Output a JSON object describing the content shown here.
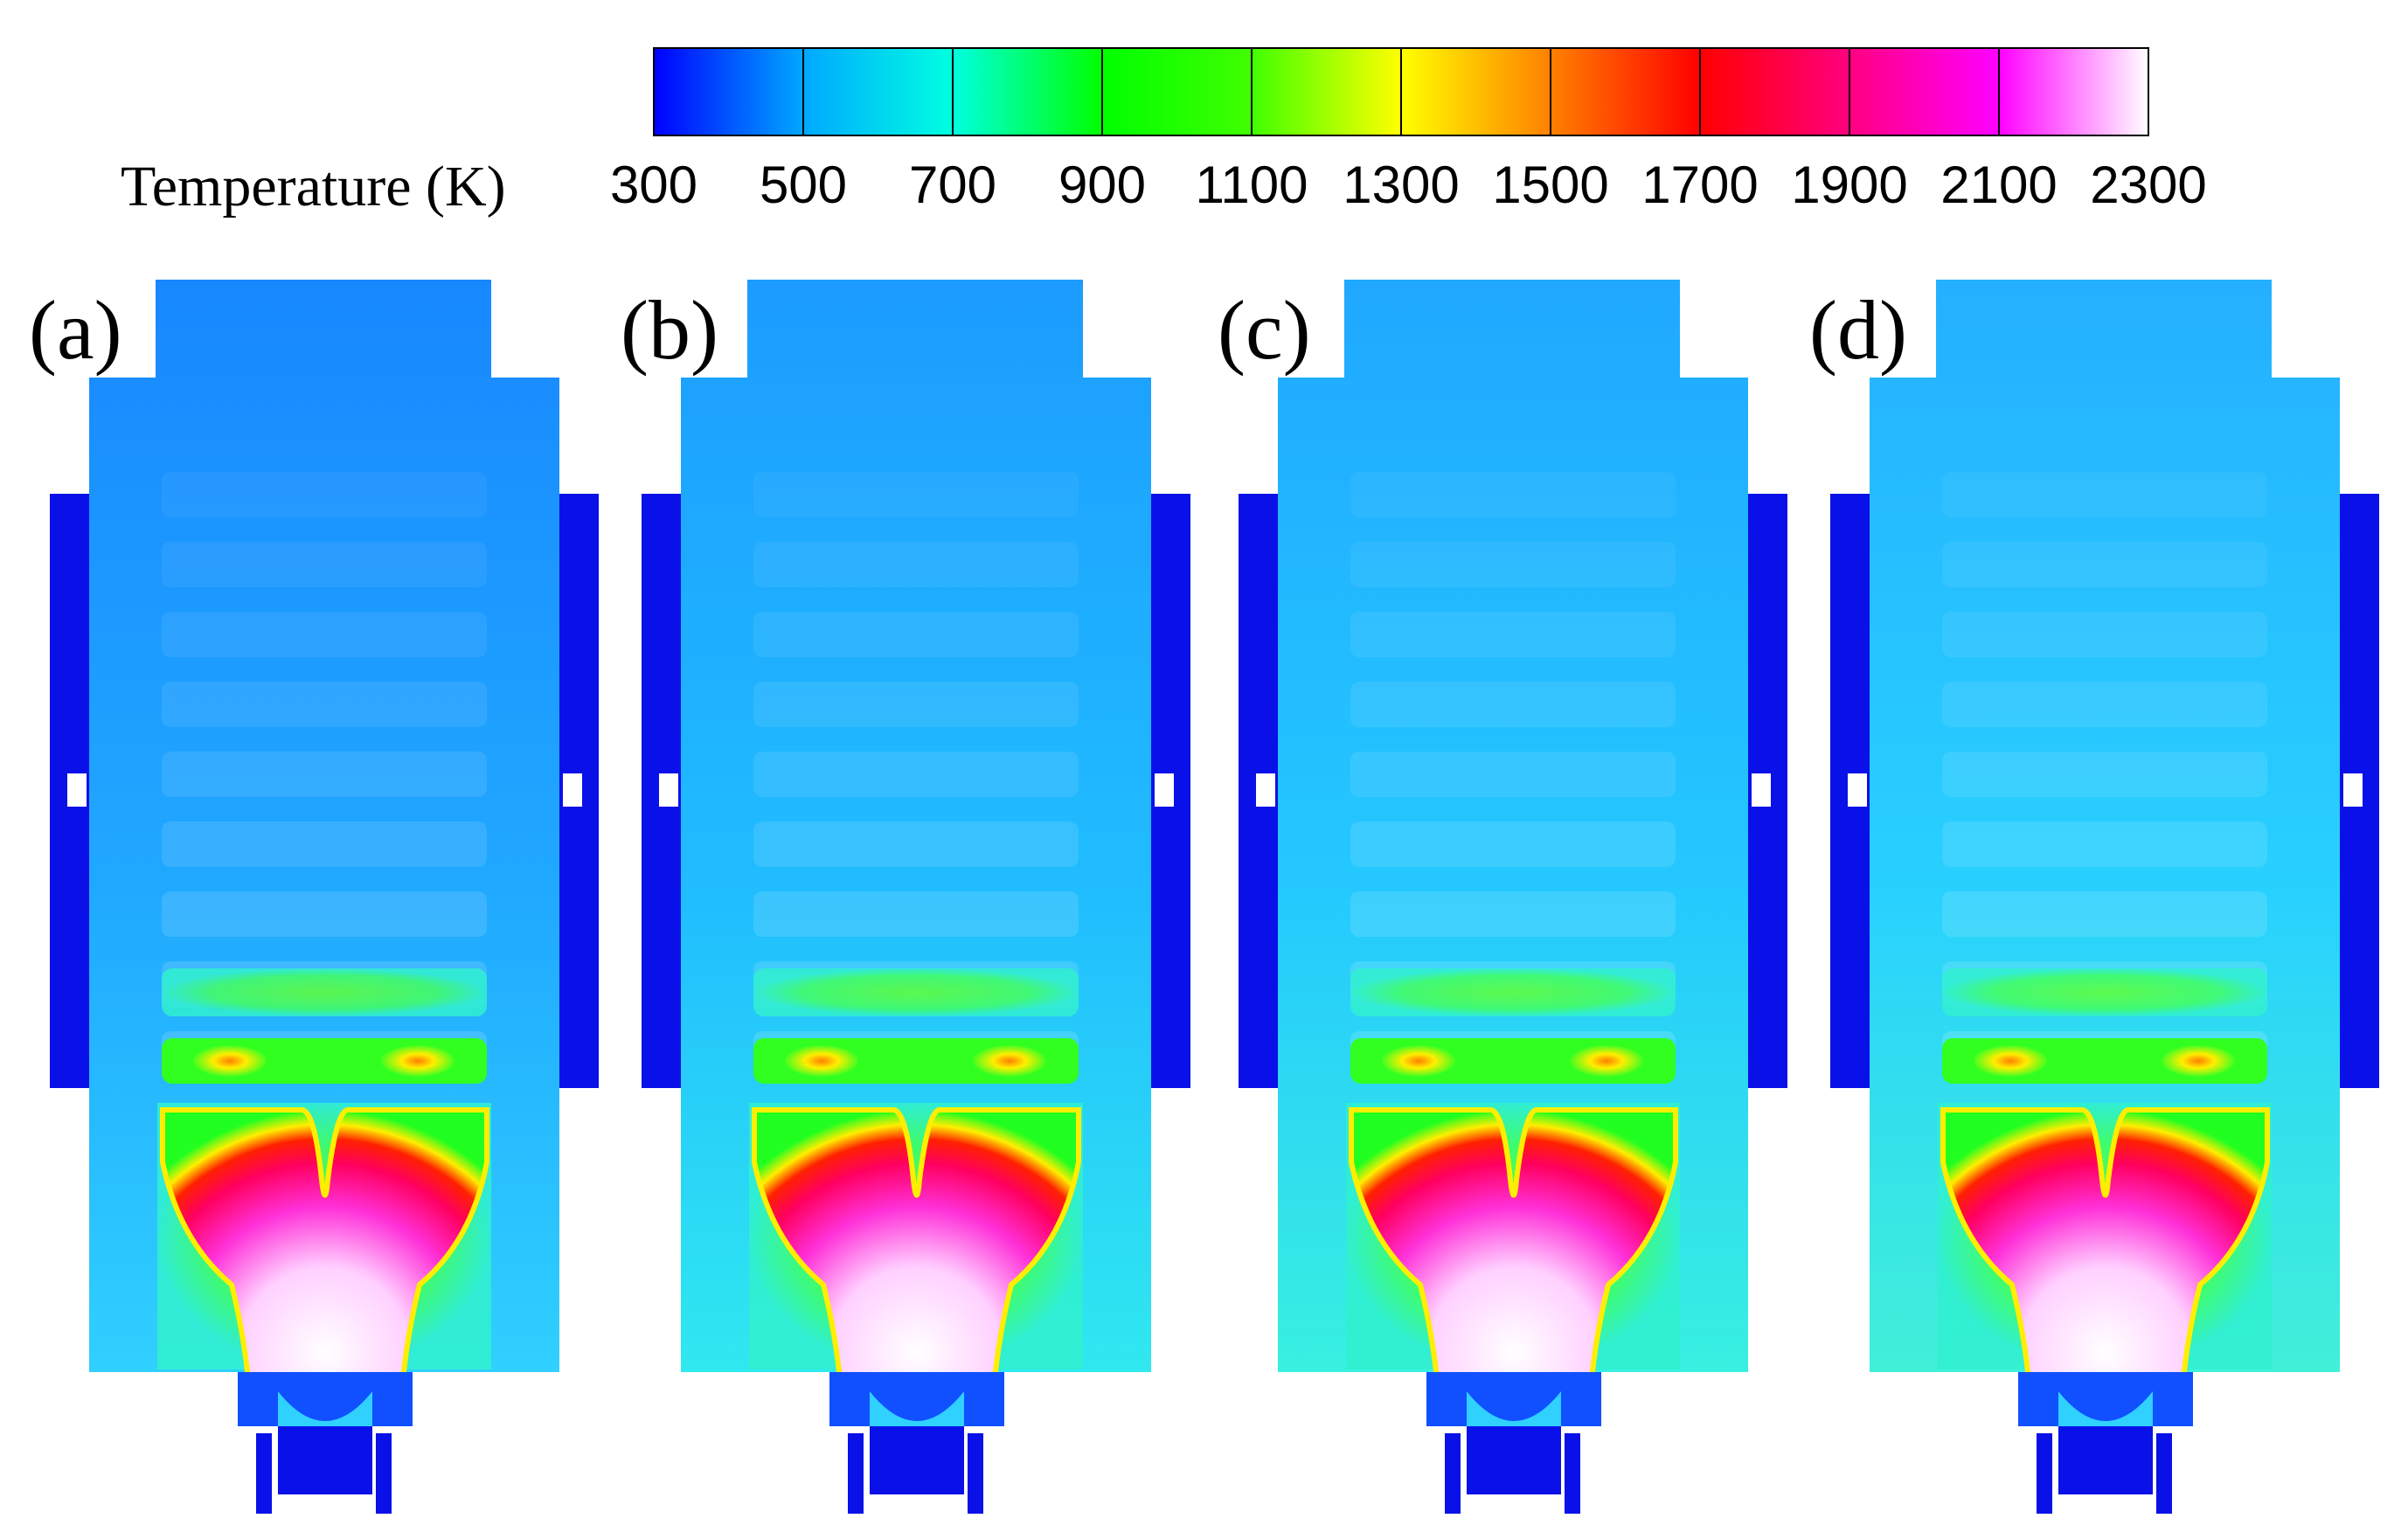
{
  "colorbar": {
    "title": "Temperature (K)",
    "ticks": [
      "300",
      "500",
      "700",
      "900",
      "1100",
      "1300",
      "1500",
      "1700",
      "1900",
      "2100",
      "2300"
    ],
    "stops": [
      "#0000ff",
      "#00a8ff",
      "#00ffe0",
      "#00ff00",
      "#40ff00",
      "#ffff00",
      "#ff8000",
      "#ff0000",
      "#ff0080",
      "#ff00ff",
      "#ffffff"
    ]
  },
  "panels": [
    {
      "label": "(a)",
      "base_color": "#1888ff",
      "mid_color": "#20a8ff",
      "lower_color": "#30d0ff"
    },
    {
      "label": "(b)",
      "base_color": "#1c9cff",
      "mid_color": "#20bcff",
      "lower_color": "#30e8f0"
    },
    {
      "label": "(c)",
      "base_color": "#20a8ff",
      "mid_color": "#24c8ff",
      "lower_color": "#38f0e0"
    },
    {
      "label": "(d)",
      "base_color": "#24b0ff",
      "mid_color": "#28d0ff",
      "lower_color": "#40f0d8"
    }
  ]
}
